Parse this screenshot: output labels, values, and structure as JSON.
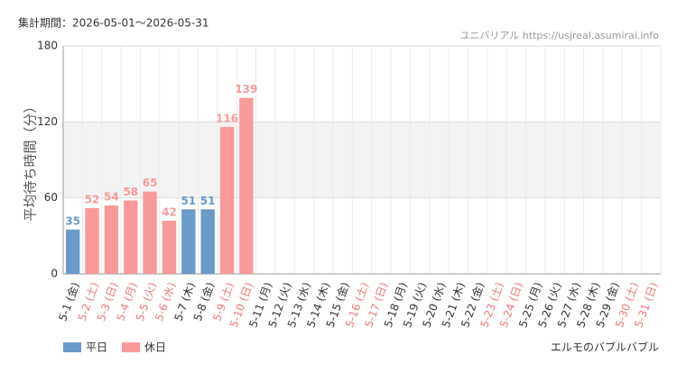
{
  "chart_data": {
    "type": "bar",
    "title": "集計期間：2026-05-01～2026-05-31",
    "source": "ユニバリアル https://usjreal.asumirai.info",
    "y_label": "平均待ち時間（分）",
    "caption": "エルモのバブルバブル",
    "categories": [
      "5-1 (金)",
      "5-2 (土)",
      "5-3 (日)",
      "5-4 (月)",
      "5-5 (火)",
      "5-6 (水)",
      "5-7 (木)",
      "5-8 (金)",
      "5-9 (土)",
      "5-10 (日)",
      "5-11 (月)",
      "5-12 (火)",
      "5-13 (水)",
      "5-14 (木)",
      "5-15 (金)",
      "5-16 (土)",
      "5-17 (日)",
      "5-18 (月)",
      "5-19 (火)",
      "5-20 (水)",
      "5-21 (木)",
      "5-22 (金)",
      "5-23 (土)",
      "5-24 (日)",
      "5-25 (月)",
      "5-26 (火)",
      "5-27 (水)",
      "5-28 (木)",
      "5-29 (金)",
      "5-30 (土)",
      "5-31 (日)"
    ],
    "category_colors": [
      "#333333",
      "#f07878",
      "#f07878",
      "#f07878",
      "#f07878",
      "#f07878",
      "#333333",
      "#333333",
      "#f07878",
      "#f07878",
      "#333333",
      "#333333",
      "#333333",
      "#333333",
      "#333333",
      "#f07878",
      "#f07878",
      "#333333",
      "#333333",
      "#333333",
      "#333333",
      "#333333",
      "#f07878",
      "#f07878",
      "#333333",
      "#333333",
      "#333333",
      "#333333",
      "#333333",
      "#f07878",
      "#f07878"
    ],
    "series": [
      {
        "name": "平日",
        "color": "#6a9ac8",
        "values": [
          35,
          null,
          null,
          null,
          null,
          null,
          51,
          51,
          null,
          null,
          null,
          null,
          null,
          null,
          null,
          null,
          null,
          null,
          null,
          null,
          null,
          null,
          null,
          null,
          null,
          null,
          null,
          null,
          null,
          null,
          null
        ]
      },
      {
        "name": "休日",
        "color": "#f99a9a",
        "values": [
          null,
          52,
          54,
          58,
          65,
          42,
          null,
          null,
          116,
          139,
          null,
          null,
          null,
          null,
          null,
          null,
          null,
          null,
          null,
          null,
          null,
          null,
          null,
          null,
          null,
          null,
          null,
          null,
          null,
          null,
          null
        ]
      }
    ],
    "ylim": [
      0,
      180
    ],
    "yticks": [
      0,
      60,
      120,
      180
    ],
    "grid": true
  }
}
